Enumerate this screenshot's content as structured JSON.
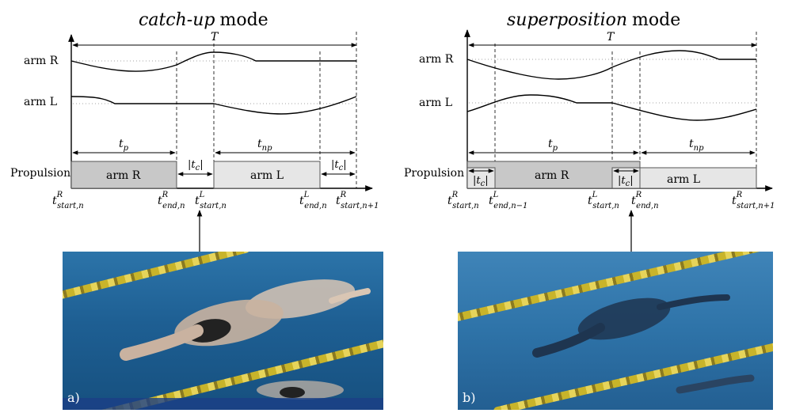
{
  "panels": [
    {
      "title_italic": "catch-up",
      "title_rest": "mode",
      "period": "T",
      "arm_r": "arm R",
      "arm_l": "arm L",
      "propulsion": "Propulsion",
      "bar1": "arm R",
      "bar2": "arm L",
      "tp": "t_p",
      "tnp": "t_np",
      "tc1": "|t_c|",
      "tc2": "|t_c|",
      "axis_labels": [
        "t^R_start,n",
        "t^R_end,n",
        "t^L_start,n",
        "t^L_end,n",
        "t^R_start,n+1"
      ],
      "photo_label": "a)"
    },
    {
      "title_italic": "superposition",
      "title_rest": "mode",
      "period": "T",
      "arm_r": "arm R",
      "arm_l": "arm L",
      "propulsion": "Propulsion",
      "bar1": "arm R",
      "bar2": "arm L",
      "tp": "t_p",
      "tnp": "t_np",
      "tc1": "|t_c|",
      "tc2": "|t_c|",
      "axis_labels": [
        "t^R_start,n",
        "t^L_end,n−1",
        "t^L_start,n",
        "t^R_end,n",
        "t^R_start,n+1"
      ],
      "photo_label": "b)"
    }
  ],
  "colors": {
    "bar_dark": "#c8c8c8",
    "bar_light": "#e6e6e6",
    "water": "#2c74a9"
  }
}
